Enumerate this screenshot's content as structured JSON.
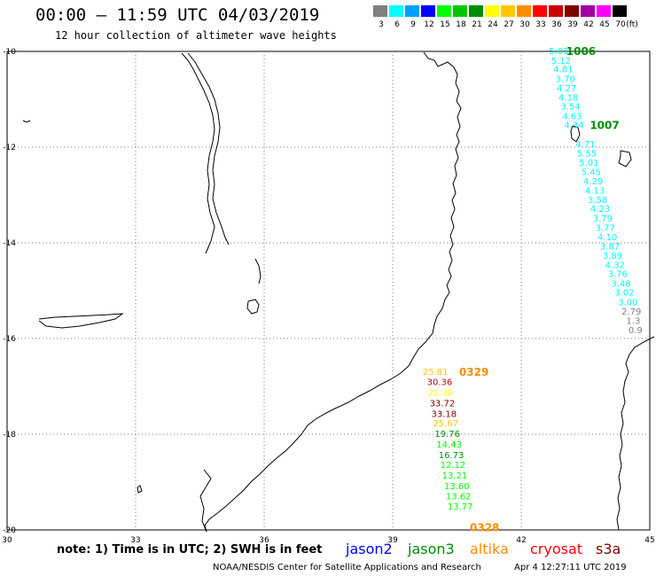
{
  "header": {
    "title": "00:00 – 11:59 UTC 04/03/2019",
    "subtitle": "12 hour collection of altimeter wave heights"
  },
  "scale": {
    "unit": "(ft)",
    "bins": [
      {
        "label": "3",
        "color": "#808080"
      },
      {
        "label": "6",
        "color": "#00ffff"
      },
      {
        "label": "9",
        "color": "#00a0ff"
      },
      {
        "label": "12",
        "color": "#0000ff"
      },
      {
        "label": "15",
        "color": "#00ff00"
      },
      {
        "label": "18",
        "color": "#00c800"
      },
      {
        "label": "21",
        "color": "#008c00"
      },
      {
        "label": "24",
        "color": "#ffff00"
      },
      {
        "label": "27",
        "color": "#ffc800"
      },
      {
        "label": "30",
        "color": "#ff8c00"
      },
      {
        "label": "33",
        "color": "#ff0000"
      },
      {
        "label": "36",
        "color": "#c80000"
      },
      {
        "label": "39",
        "color": "#800000"
      },
      {
        "label": "42",
        "color": "#a000a0"
      },
      {
        "label": "45",
        "color": "#ff00ff"
      },
      {
        "label": "70",
        "color": "#000000"
      }
    ]
  },
  "axes": {
    "lat_labels": [
      "-10",
      "-12",
      "-14",
      "-16",
      "-18",
      "-20"
    ],
    "lon_labels": [
      "30",
      "33",
      "36",
      "39",
      "42",
      "45"
    ]
  },
  "passes": [
    {
      "id": "1006",
      "color": "#008c00",
      "lon": 43.05,
      "lat": -10.0
    },
    {
      "id": "1007",
      "color": "#008c00",
      "lon": 43.6,
      "lat": -11.55
    },
    {
      "id": "0329",
      "color": "#ff8c00",
      "lon": 40.55,
      "lat": -16.7
    },
    {
      "id": "0328",
      "color": "#ff8c00",
      "lon": 40.8,
      "lat": -19.95
    }
  ],
  "observations": [
    {
      "swh": "5.01",
      "color": "#00ffff",
      "lon": 42.65,
      "lat": -10.0
    },
    {
      "swh": "5.12",
      "color": "#00ffff",
      "lon": 42.7,
      "lat": -10.2
    },
    {
      "swh": "4.81",
      "color": "#00ffff",
      "lon": 42.75,
      "lat": -10.38
    },
    {
      "swh": "3.70",
      "color": "#00ffff",
      "lon": 42.8,
      "lat": -10.58
    },
    {
      "swh": "4.27",
      "color": "#00ffff",
      "lon": 42.83,
      "lat": -10.78
    },
    {
      "swh": "4.18",
      "color": "#00ffff",
      "lon": 42.87,
      "lat": -10.97
    },
    {
      "swh": "3.54",
      "color": "#00ffff",
      "lon": 42.92,
      "lat": -11.16
    },
    {
      "swh": "4.63",
      "color": "#00ffff",
      "lon": 42.96,
      "lat": -11.36
    },
    {
      "swh": "4.34",
      "color": "#00ffff",
      "lon": 43.0,
      "lat": -11.55
    },
    {
      "swh": "4.71",
      "color": "#00ffff",
      "lon": 43.27,
      "lat": -11.94
    },
    {
      "swh": "5.55",
      "color": "#00ffff",
      "lon": 43.3,
      "lat": -12.14
    },
    {
      "swh": "5.01",
      "color": "#00ffff",
      "lon": 43.35,
      "lat": -12.33
    },
    {
      "swh": "5.45",
      "color": "#00ffff",
      "lon": 43.4,
      "lat": -12.53
    },
    {
      "swh": "4.29",
      "color": "#00ffff",
      "lon": 43.45,
      "lat": -12.72
    },
    {
      "swh": "4.13",
      "color": "#00ffff",
      "lon": 43.49,
      "lat": -12.92
    },
    {
      "swh": "3.58",
      "color": "#00ffff",
      "lon": 43.55,
      "lat": -13.11
    },
    {
      "swh": "4.23",
      "color": "#00ffff",
      "lon": 43.61,
      "lat": -13.3
    },
    {
      "swh": "3.79",
      "color": "#00ffff",
      "lon": 43.67,
      "lat": -13.5
    },
    {
      "swh": "3.77",
      "color": "#00ffff",
      "lon": 43.73,
      "lat": -13.69
    },
    {
      "swh": "4.10",
      "color": "#00ffff",
      "lon": 43.78,
      "lat": -13.89
    },
    {
      "swh": "3.87",
      "color": "#00ffff",
      "lon": 43.84,
      "lat": -14.08
    },
    {
      "swh": "3.89",
      "color": "#00ffff",
      "lon": 43.9,
      "lat": -14.28
    },
    {
      "swh": "4.32",
      "color": "#00ffff",
      "lon": 43.96,
      "lat": -14.47
    },
    {
      "swh": "3.76",
      "color": "#00ffff",
      "lon": 44.02,
      "lat": -14.66
    },
    {
      "swh": "3.48",
      "color": "#00ffff",
      "lon": 44.1,
      "lat": -14.86
    },
    {
      "swh": "3.02",
      "color": "#00ffff",
      "lon": 44.18,
      "lat": -15.05
    },
    {
      "swh": "3.00",
      "color": "#00ffff",
      "lon": 44.26,
      "lat": -15.25
    },
    {
      "swh": "2.79",
      "color": "#808080",
      "lon": 44.34,
      "lat": -15.44
    },
    {
      "swh": "1.3",
      "color": "#808080",
      "lon": 44.45,
      "lat": -15.64
    },
    {
      "swh": "0.9",
      "color": "#808080",
      "lon": 44.5,
      "lat": -15.83
    },
    {
      "swh": "25.81",
      "color": "#ffc800",
      "lon": 39.7,
      "lat": -16.7
    },
    {
      "swh": "30.36",
      "color": "#c80000",
      "lon": 39.8,
      "lat": -16.92
    },
    {
      "swh": "22.38",
      "color": "#ffff00",
      "lon": 39.82,
      "lat": -17.14
    },
    {
      "swh": "33.72",
      "color": "#800000",
      "lon": 39.86,
      "lat": -17.36
    },
    {
      "swh": "33.18",
      "color": "#800000",
      "lon": 39.9,
      "lat": -17.58
    },
    {
      "swh": "25.67",
      "color": "#ffc800",
      "lon": 39.94,
      "lat": -17.78
    },
    {
      "swh": "19.76",
      "color": "#008c00",
      "lon": 39.98,
      "lat": -18.0
    },
    {
      "swh": "14.43",
      "color": "#00ff00",
      "lon": 40.02,
      "lat": -18.22
    },
    {
      "swh": "16.73",
      "color": "#008c00",
      "lon": 40.07,
      "lat": -18.44
    },
    {
      "swh": "12.12",
      "color": "#00ff00",
      "lon": 40.11,
      "lat": -18.65
    },
    {
      "swh": "13.21",
      "color": "#00ff00",
      "lon": 40.15,
      "lat": -18.87
    },
    {
      "swh": "13.60",
      "color": "#00ff00",
      "lon": 40.2,
      "lat": -19.09
    },
    {
      "swh": "13.62",
      "color": "#00ff00",
      "lon": 40.24,
      "lat": -19.31
    },
    {
      "swh": "13.77",
      "color": "#00ff00",
      "lon": 40.28,
      "lat": -19.52
    }
  ],
  "footer": {
    "note": "note: 1) Time is in UTC; 2) SWH is in feet",
    "satellites": [
      {
        "name": "jason2",
        "color": "#0000ff"
      },
      {
        "name": "jason3",
        "color": "#008c00"
      },
      {
        "name": "altika",
        "color": "#ff8c00"
      },
      {
        "name": "cryosat",
        "color": "#ff0000"
      },
      {
        "name": "s3a",
        "color": "#800000"
      }
    ],
    "credit": "NOAA/NESDIS Center for Satellite Applications and Research",
    "generated": "Apr  4 12:27:11 UTC 2019"
  }
}
